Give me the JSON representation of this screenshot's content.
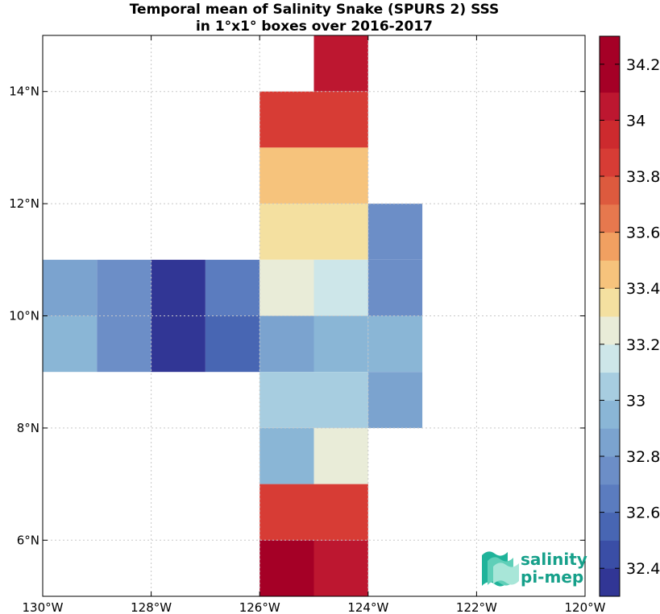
{
  "title_line1": "Temporal mean of Salinity Snake (SPURS 2) SSS",
  "title_line2": "in 1°x1° boxes over 2016-2017",
  "logo": {
    "line1": "salinity",
    "line2": "pi-mep",
    "color": "#16a08a"
  },
  "chart_data": {
    "type": "heatmap",
    "x_ticks": [
      "130°W",
      "128°W",
      "126°W",
      "124°W",
      "122°W",
      "120°W"
    ],
    "y_ticks": [
      "6°N",
      "8°N",
      "10°N",
      "12°N",
      "14°N"
    ],
    "lon_range": [
      -130,
      -120
    ],
    "lat_range": [
      5,
      15
    ],
    "grid": true,
    "colorbar": {
      "ticks": [
        "32.4",
        "32.6",
        "32.8",
        "33",
        "33.2",
        "33.4",
        "33.6",
        "33.8",
        "34",
        "34.2"
      ],
      "range": [
        32.3,
        34.3
      ],
      "step": 0.1,
      "colors": [
        "#313695",
        "#3a4ea6",
        "#4866b3",
        "#5b7cbf",
        "#6c8ec7",
        "#7ba3cf",
        "#8ab6d6",
        "#a7cde0",
        "#cde6e9",
        "#e9ecd8",
        "#f4e0a0",
        "#f6c37c",
        "#f1a061",
        "#e6784e",
        "#dd5a3e",
        "#d73c35",
        "#cd2a2e",
        "#bd1730",
        "#a50026",
        "#a50026"
      ]
    },
    "boxes": [
      {
        "lon": -125,
        "lat": 14,
        "sss": 34.05
      },
      {
        "lon": -126,
        "lat": 13,
        "sss": 33.8
      },
      {
        "lon": -125,
        "lat": 13,
        "sss": 33.8
      },
      {
        "lon": -126,
        "lat": 12,
        "sss": 33.45
      },
      {
        "lon": -125,
        "lat": 12,
        "sss": 33.45
      },
      {
        "lon": -126,
        "lat": 11,
        "sss": 33.35
      },
      {
        "lon": -125,
        "lat": 11,
        "sss": 33.35
      },
      {
        "lon": -124,
        "lat": 11,
        "sss": 32.75
      },
      {
        "lon": -130,
        "lat": 10,
        "sss": 32.85
      },
      {
        "lon": -129,
        "lat": 10,
        "sss": 32.75
      },
      {
        "lon": -128,
        "lat": 10,
        "sss": 32.35
      },
      {
        "lon": -127,
        "lat": 10,
        "sss": 32.65
      },
      {
        "lon": -126,
        "lat": 10,
        "sss": 33.25
      },
      {
        "lon": -125,
        "lat": 10,
        "sss": 33.15
      },
      {
        "lon": -124,
        "lat": 10,
        "sss": 32.75
      },
      {
        "lon": -130,
        "lat": 9,
        "sss": 32.95
      },
      {
        "lon": -129,
        "lat": 9,
        "sss": 32.75
      },
      {
        "lon": -128,
        "lat": 9,
        "sss": 32.35
      },
      {
        "lon": -127,
        "lat": 9,
        "sss": 32.55
      },
      {
        "lon": -126,
        "lat": 9,
        "sss": 32.8
      },
      {
        "lon": -125,
        "lat": 9,
        "sss": 32.9
      },
      {
        "lon": -124,
        "lat": 9,
        "sss": 32.9
      },
      {
        "lon": -126,
        "lat": 8,
        "sss": 33.05
      },
      {
        "lon": -125,
        "lat": 8,
        "sss": 33.05
      },
      {
        "lon": -124,
        "lat": 8,
        "sss": 32.85
      },
      {
        "lon": -126,
        "lat": 7,
        "sss": 32.95
      },
      {
        "lon": -125,
        "lat": 7,
        "sss": 33.25
      },
      {
        "lon": -126,
        "lat": 6,
        "sss": 33.8
      },
      {
        "lon": -125,
        "lat": 6,
        "sss": 33.8
      },
      {
        "lon": -126,
        "lat": 5,
        "sss": 34.15
      },
      {
        "lon": -125,
        "lat": 5,
        "sss": 34.05
      }
    ]
  }
}
